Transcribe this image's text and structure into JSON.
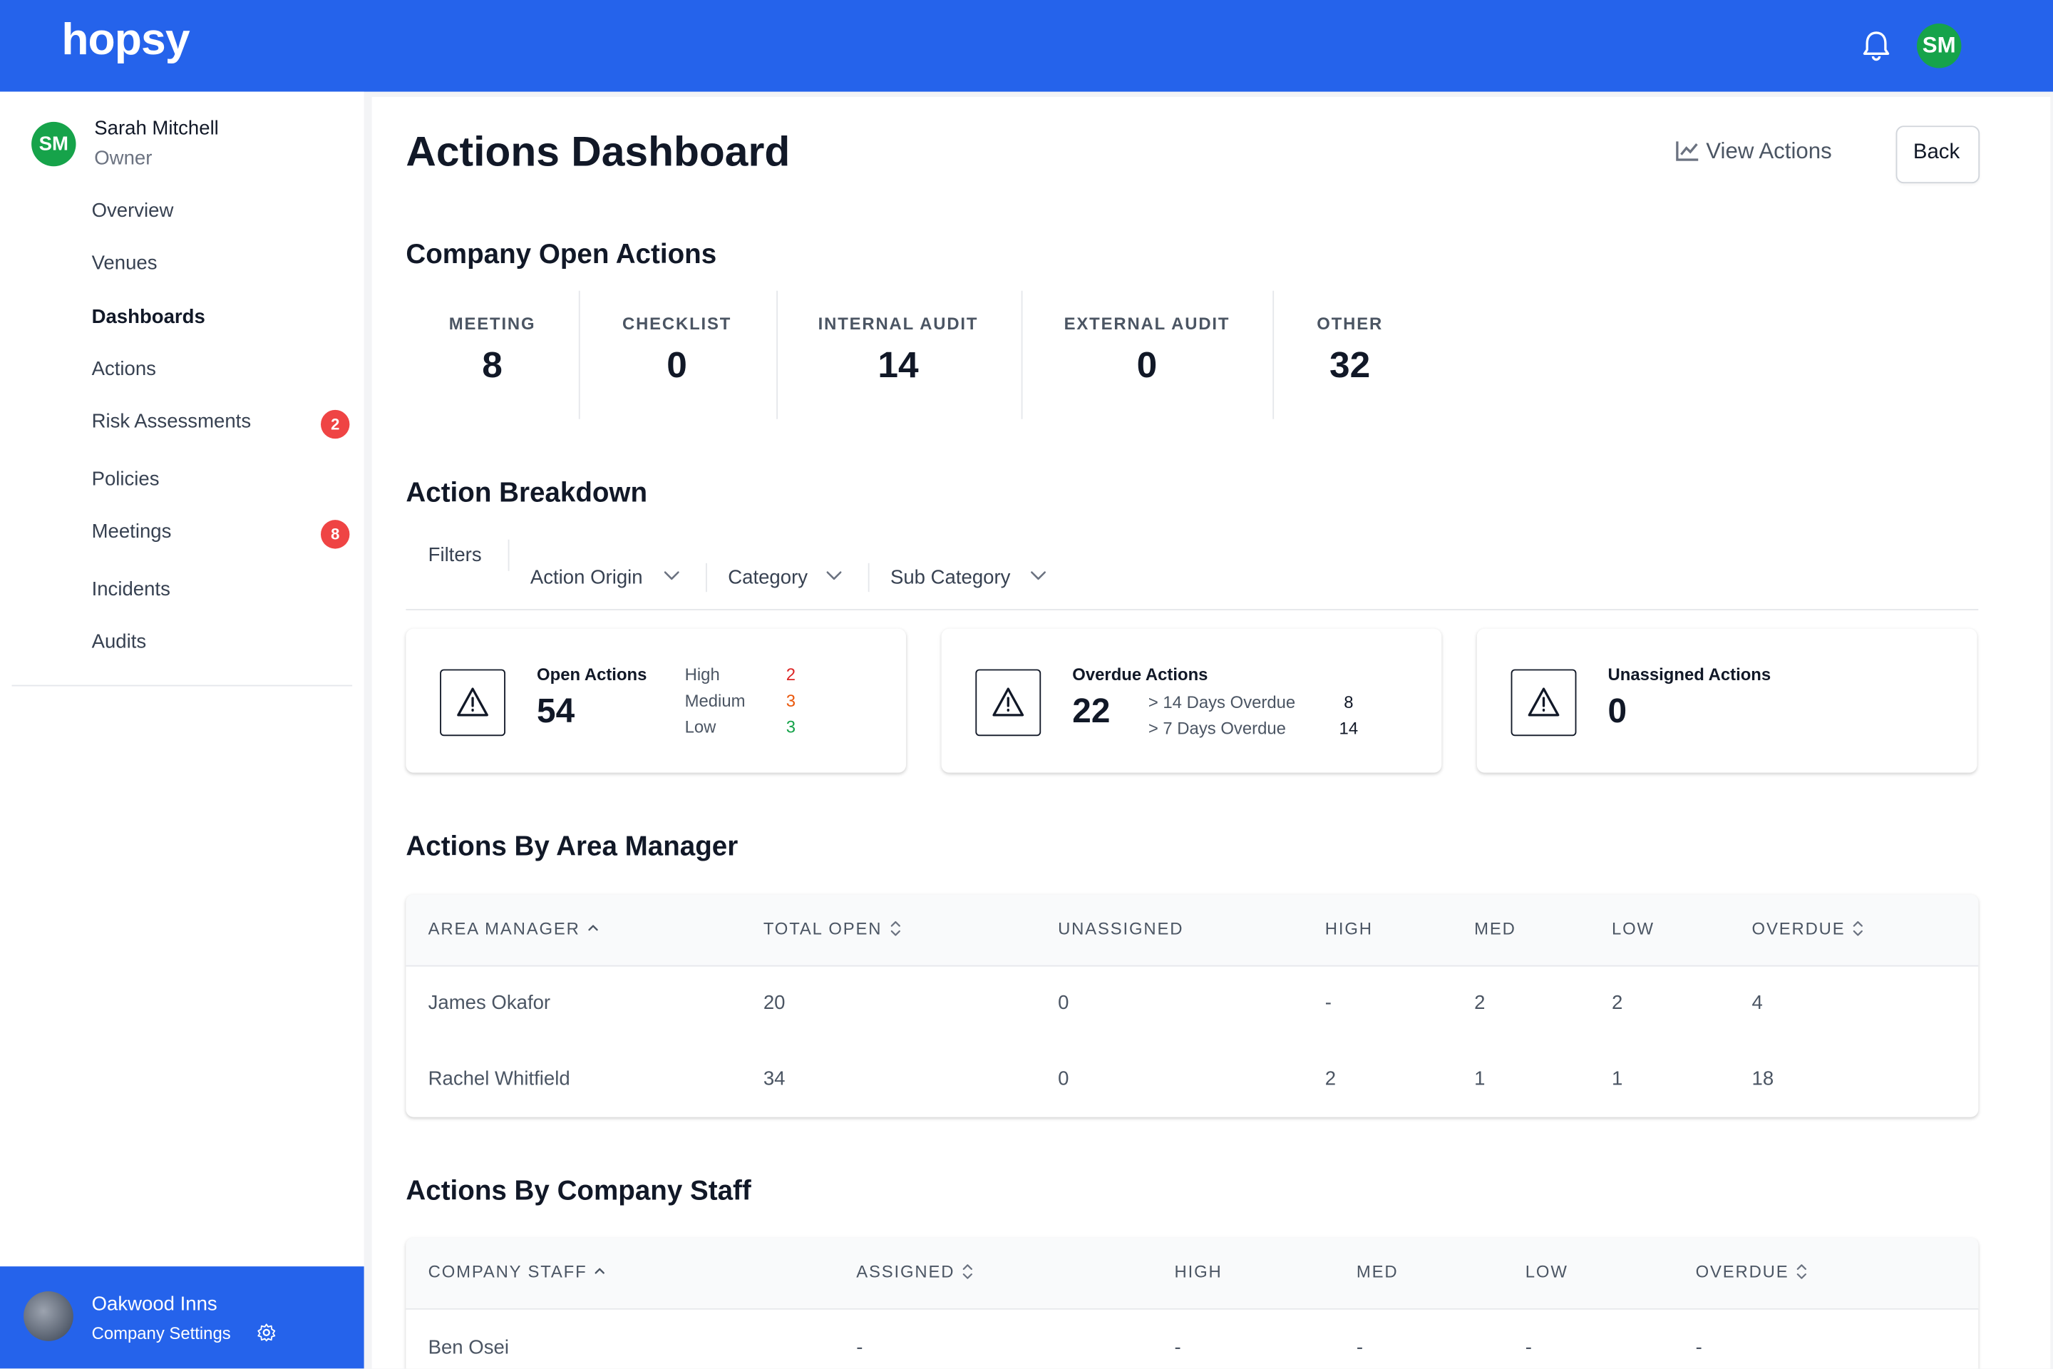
{
  "header": {
    "logo": "hopsy",
    "avatar": "SM"
  },
  "user": {
    "initials": "SM",
    "name": "Sarah Mitchell",
    "role": "Owner"
  },
  "nav": [
    {
      "label": "Overview"
    },
    {
      "label": "Venues"
    },
    {
      "label": "Dashboards",
      "active": true
    },
    {
      "label": "Actions"
    },
    {
      "label": "Risk Assessments",
      "badge": 2
    },
    {
      "label": "Policies"
    },
    {
      "label": "Meetings",
      "badge": 8
    },
    {
      "label": "Incidents"
    },
    {
      "label": "Audits"
    }
  ],
  "company": {
    "name": "Oakwood Inns",
    "link": "Company Settings"
  },
  "page": {
    "title": "Actions Dashboard",
    "view_actions": "View Actions",
    "back": "Back"
  },
  "open_actions": {
    "title": "Company Open Actions",
    "items": [
      {
        "label": "MEETING",
        "value": 8
      },
      {
        "label": "CHECKLIST",
        "value": 0
      },
      {
        "label": "INTERNAL AUDIT",
        "value": 14
      },
      {
        "label": "EXTERNAL AUDIT",
        "value": 0
      },
      {
        "label": "OTHER",
        "value": 32
      }
    ]
  },
  "breakdown": {
    "title": "Action Breakdown",
    "filters_label": "Filters",
    "filters": [
      "Action Origin",
      "Category",
      "Sub Category"
    ],
    "cards": [
      {
        "title": "Open Actions",
        "value": 54,
        "rows": [
          {
            "label": "High",
            "value": 2,
            "color": "#dc2626"
          },
          {
            "label": "Medium",
            "value": 3,
            "color": "#ea580c"
          },
          {
            "label": "Low",
            "value": 3,
            "color": "#16a34a"
          }
        ]
      },
      {
        "title": "Overdue Actions",
        "value": 22,
        "rows": [
          {
            "label": "> 14 Days Overdue",
            "value": 8,
            "color": "#111827"
          },
          {
            "label": "> 7 Days Overdue",
            "value": 14,
            "color": "#111827"
          }
        ]
      },
      {
        "title": "Unassigned Actions",
        "value": 0,
        "rows": []
      }
    ]
  },
  "area_table": {
    "title": "Actions By Area Manager",
    "columns": [
      {
        "label": "AREA MANAGER",
        "sort": "asc"
      },
      {
        "label": "TOTAL OPEN",
        "sort": "both"
      },
      {
        "label": "UNASSIGNED"
      },
      {
        "label": "HIGH"
      },
      {
        "label": "MED"
      },
      {
        "label": "LOW"
      },
      {
        "label": "OVERDUE",
        "sort": "both"
      }
    ],
    "rows": [
      [
        "James Okafor",
        20,
        0,
        "-",
        2,
        2,
        4
      ],
      [
        "Rachel Whitfield",
        34,
        0,
        2,
        1,
        1,
        18
      ]
    ]
  },
  "staff_table": {
    "title": "Actions By Company Staff",
    "columns": [
      {
        "label": "COMPANY STAFF",
        "sort": "asc"
      },
      {
        "label": "ASSIGNED",
        "sort": "both"
      },
      {
        "label": "HIGH"
      },
      {
        "label": "MED"
      },
      {
        "label": "LOW"
      },
      {
        "label": "OVERDUE",
        "sort": "both"
      }
    ],
    "rows": [
      [
        "Ben Osei",
        "-",
        "-",
        "-",
        "-",
        "-"
      ]
    ]
  }
}
